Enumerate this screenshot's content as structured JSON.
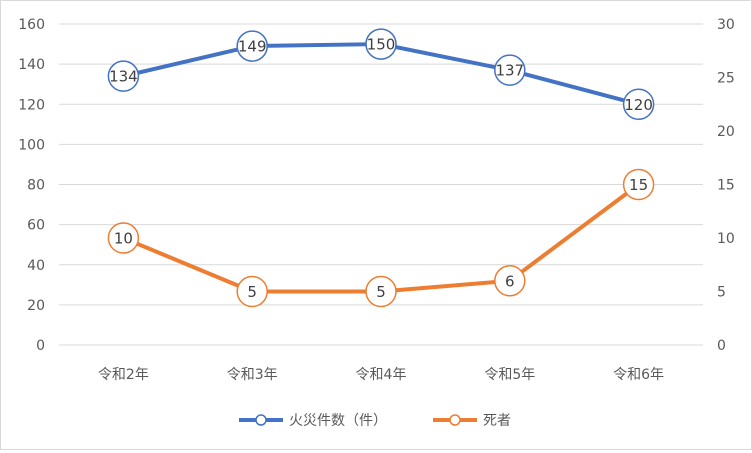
{
  "chart_data": {
    "type": "line",
    "title": "",
    "xlabel": "",
    "ylabel": "",
    "categories": [
      "令和2年",
      "令和3年",
      "令和4年",
      "令和5年",
      "令和6年"
    ],
    "y_left": {
      "min": 0,
      "max": 160,
      "step": 20,
      "ticks": [
        "0",
        "20",
        "40",
        "60",
        "80",
        "100",
        "120",
        "140",
        "160"
      ]
    },
    "y_right": {
      "min": 0,
      "max": 30,
      "step": 5,
      "ticks": [
        "0",
        "5",
        "10",
        "15",
        "20",
        "25",
        "30"
      ]
    },
    "grid": true,
    "legend_position": "bottom",
    "series": [
      {
        "name": "火災件数（件）",
        "axis": "left",
        "color": "#4472c4",
        "values": [
          134,
          149,
          150,
          137,
          120
        ],
        "labels": [
          "134",
          "149",
          "150",
          "137",
          "120"
        ]
      },
      {
        "name": "死者",
        "axis": "right",
        "color": "#ed7d31",
        "values": [
          10,
          5,
          5,
          6,
          15
        ],
        "labels": [
          "10",
          "5",
          "5",
          "6",
          "15"
        ]
      }
    ]
  }
}
